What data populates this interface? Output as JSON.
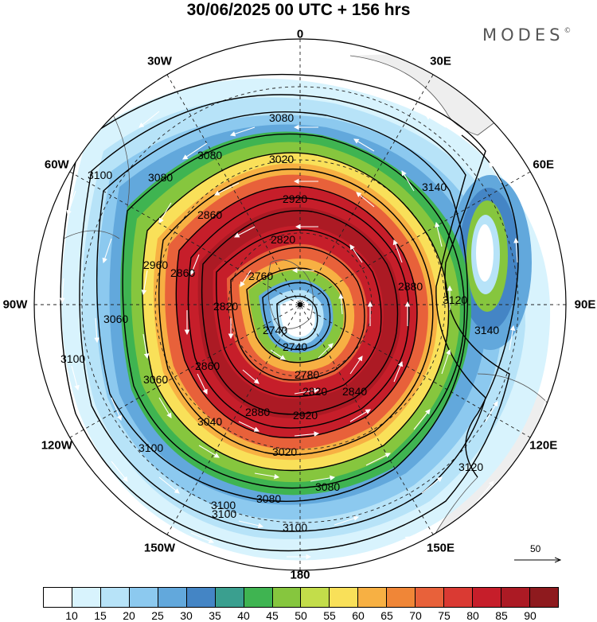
{
  "title": "30/06/2025  00 UTC  + 156 hrs",
  "brand": {
    "name": "MODES",
    "mark": "©"
  },
  "longitude_labels": [
    {
      "id": "lon-0",
      "text": "0",
      "angle": 0
    },
    {
      "id": "lon-30e",
      "text": "30E",
      "angle": 30
    },
    {
      "id": "lon-60e",
      "text": "60E",
      "angle": 60
    },
    {
      "id": "lon-90e",
      "text": "90E",
      "angle": 90
    },
    {
      "id": "lon-120e",
      "text": "120E",
      "angle": 120
    },
    {
      "id": "lon-150e",
      "text": "150E",
      "angle": 150
    },
    {
      "id": "lon-180",
      "text": "180",
      "angle": 180
    },
    {
      "id": "lon-150w",
      "text": "150W",
      "angle": 210
    },
    {
      "id": "lon-120w",
      "text": "120W",
      "angle": 240
    },
    {
      "id": "lon-90w",
      "text": "90W",
      "angle": 270
    },
    {
      "id": "lon-60w",
      "text": "60W",
      "angle": 300
    },
    {
      "id": "lon-30w",
      "text": "30W",
      "angle": 330
    }
  ],
  "contour_labels": [
    "3080",
    "3020",
    "2920",
    "2860",
    "2820",
    "2760",
    "2740",
    "2780",
    "2820",
    "2860",
    "2880",
    "2920",
    "3020",
    "3040",
    "3060",
    "3080",
    "3100",
    "3120",
    "3140",
    "3100",
    "3060",
    "3080",
    "3100",
    "2740",
    "2820",
    "2840",
    "2860",
    "2880",
    "2960"
  ],
  "reference_vector": {
    "label": "50"
  },
  "legend": {
    "colors": [
      "#ffffff",
      "#d8f3fd",
      "#b7e3f8",
      "#8cc9ef",
      "#62a8dc",
      "#4485c5",
      "#3a9f8f",
      "#3fb451",
      "#86c63e",
      "#c3dd4a",
      "#f9e059",
      "#f7b043",
      "#f08637",
      "#e8613a",
      "#da3a33",
      "#c61e2a",
      "#ac1a24",
      "#8e1a1e"
    ],
    "labels": [
      "10",
      "15",
      "20",
      "25",
      "30",
      "35",
      "40",
      "45",
      "50",
      "55",
      "60",
      "65",
      "70",
      "75",
      "80",
      "85",
      "90"
    ]
  },
  "map_extent": {
    "projection": "south polar stereographic",
    "variable_contours": "geopotential height (gpm)",
    "variable_shaded": "wind speed"
  }
}
